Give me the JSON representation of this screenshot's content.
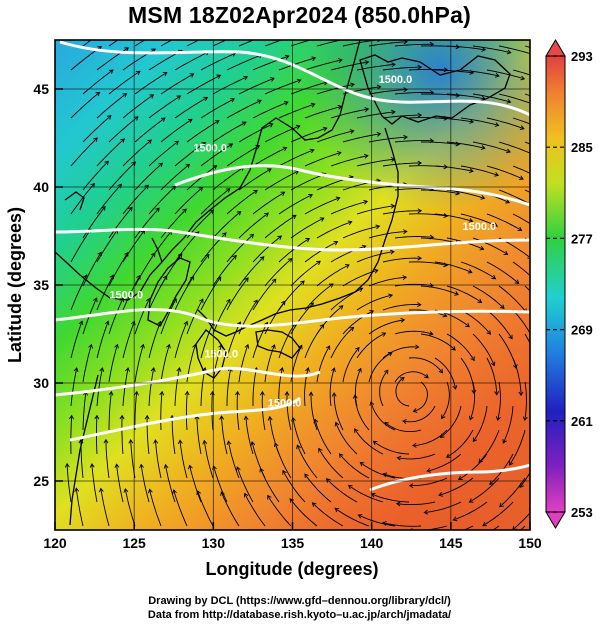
{
  "title": "MSM 18Z02Apr2024 (850.0hPa)",
  "xlabel": "Longitude (degrees)",
  "ylabel": "Latitude  (degrees)",
  "credits": [
    "Drawing by DCL (https://www.gfd–dennou.org/library/dcl/)",
    "Data from http://database.rish.kyoto–u.ac.jp/arch/jmadata/"
  ],
  "chart_data": {
    "type": "heatmap",
    "variable_description": "temperature shading with streamlines and white geopotential height contours",
    "xlim": [
      120,
      150
    ],
    "ylim": [
      22.5,
      47.5
    ],
    "x_ticks": [
      120,
      125,
      130,
      135,
      140,
      145,
      150
    ],
    "y_ticks": [
      25,
      30,
      35,
      40,
      45
    ],
    "grid": true,
    "colorbar": {
      "min": 253,
      "max": 293,
      "tick_labels": [
        253,
        261,
        269,
        277,
        285,
        293
      ],
      "position": "right",
      "extend": "both"
    },
    "contour_labels": [
      {
        "text": "1500.0",
        "lon": 141.5,
        "lat": 45.3
      },
      {
        "text": "1500.0",
        "lon": 129.8,
        "lat": 41.8
      },
      {
        "text": "1500.0",
        "lon": 146.8,
        "lat": 37.8
      },
      {
        "text": "1500.0",
        "lon": 124.5,
        "lat": 34.3
      },
      {
        "text": "1500.0",
        "lon": 130.5,
        "lat": 31.3
      },
      {
        "text": "1500.0",
        "lon": 134.5,
        "lat": 28.8
      }
    ],
    "cyclone_center": {
      "lon": 142.5,
      "lat": 29.5
    }
  }
}
